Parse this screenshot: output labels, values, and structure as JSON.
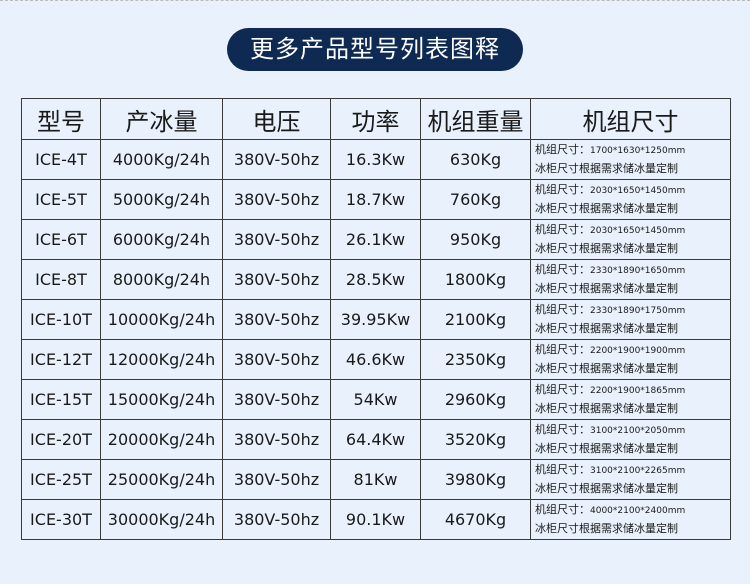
{
  "title": "更多产品型号列表图释",
  "headers": [
    "型号",
    "产冰量",
    "电压",
    "功率",
    "机组重量",
    "机组尺寸"
  ],
  "size_prefix": "机组尺寸：",
  "size_note": "冰柜尺寸根据需求储冰量定制",
  "rows": [
    {
      "model": "ICE-4T",
      "output": "4000Kg/24h",
      "voltage": "380V-50hz",
      "power": "16.3Kw",
      "weight": "630Kg",
      "size": "1700*1630*1250mm"
    },
    {
      "model": "ICE-5T",
      "output": "5000Kg/24h",
      "voltage": "380V-50hz",
      "power": "18.7Kw",
      "weight": "760Kg",
      "size": "2030*1650*1450mm"
    },
    {
      "model": "ICE-6T",
      "output": "6000Kg/24h",
      "voltage": "380V-50hz",
      "power": "26.1Kw",
      "weight": "950Kg",
      "size": "2030*1650*1450mm"
    },
    {
      "model": "ICE-8T",
      "output": "8000Kg/24h",
      "voltage": "380V-50hz",
      "power": "28.5Kw",
      "weight": "1800Kg",
      "size": "2330*1890*1650mm"
    },
    {
      "model": "ICE-10T",
      "output": "10000Kg/24h",
      "voltage": "380V-50hz",
      "power": "39.95Kw",
      "weight": "2100Kg",
      "size": "2330*1890*1750mm"
    },
    {
      "model": "ICE-12T",
      "output": "12000Kg/24h",
      "voltage": "380V-50hz",
      "power": "46.6Kw",
      "weight": "2350Kg",
      "size": "2200*1900*1900mm"
    },
    {
      "model": "ICE-15T",
      "output": "15000Kg/24h",
      "voltage": "380V-50hz",
      "power": "54Kw",
      "weight": "2960Kg",
      "size": "2200*1900*1865mm"
    },
    {
      "model": "ICE-20T",
      "output": "20000Kg/24h",
      "voltage": "380V-50hz",
      "power": "64.4Kw",
      "weight": "3520Kg",
      "size": "3100*2100*2050mm"
    },
    {
      "model": "ICE-25T",
      "output": "25000Kg/24h",
      "voltage": "380V-50hz",
      "power": "81Kw",
      "weight": "3980Kg",
      "size": "3100*2100*2265mm"
    },
    {
      "model": "ICE-30T",
      "output": "30000Kg/24h",
      "voltage": "380V-50hz",
      "power": "90.1Kw",
      "weight": "4670Kg",
      "size": "4000*2100*2400mm"
    }
  ]
}
